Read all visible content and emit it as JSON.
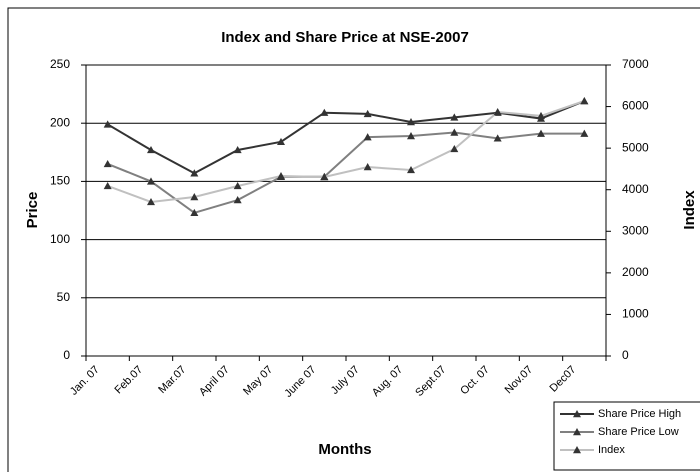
{
  "chart_data": {
    "type": "line",
    "title": "Index and Share Price at NSE-2007",
    "x_label": "Months",
    "y_label": "Price",
    "y2_label": "Index",
    "categories": [
      "Jan. 07",
      "Feb.07",
      "Mar.07",
      "April 07",
      "May 07",
      "June 07",
      "July 07",
      "Aug. 07",
      "Sept.07",
      "Oct. 07",
      "Nov.07",
      "Dec07"
    ],
    "series": [
      {
        "name": "Share Price High",
        "color": "#333333",
        "values": [
          199,
          177,
          157,
          177,
          184,
          209,
          208,
          201,
          205,
          209,
          204,
          219
        ]
      },
      {
        "name": "Share Price Low",
        "color": "#808080",
        "values": [
          165,
          150,
          123,
          134,
          154,
          154,
          188,
          189,
          192,
          187,
          191,
          191
        ]
      },
      {
        "name": "Index",
        "color": "#c0c0c0",
        "axis": "y2",
        "values": [
          4090,
          3705,
          3825,
          4090,
          4330,
          4305,
          4545,
          4475,
          4980,
          5870,
          5775,
          6134
        ]
      }
    ],
    "ylim": [
      0,
      250
    ],
    "yticks": [
      0,
      50,
      100,
      150,
      200,
      250
    ],
    "y2lim": [
      0,
      7000
    ],
    "y2ticks": [
      0,
      1000,
      2000,
      3000,
      4000,
      5000,
      6000,
      7000
    ],
    "grid": true,
    "legend": "lower right"
  }
}
